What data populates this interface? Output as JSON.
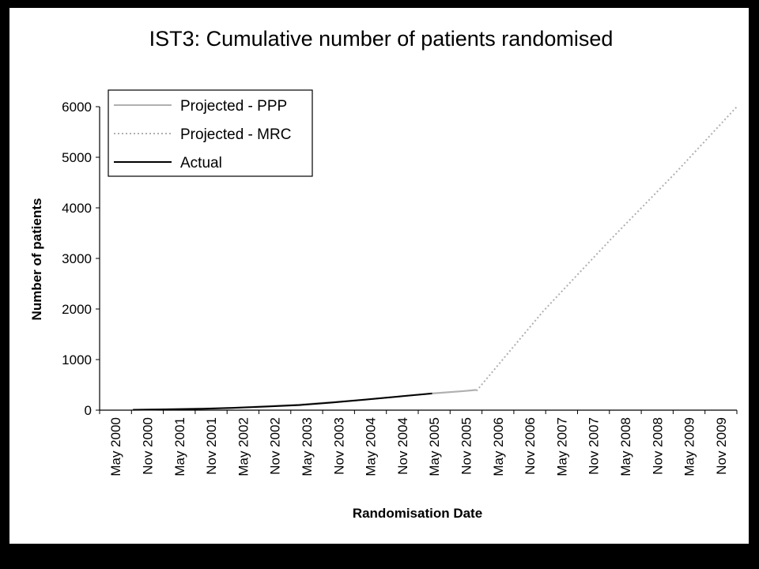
{
  "chart_data": {
    "type": "line",
    "title": "IST3: Cumulative number of patients randomised",
    "xlabel": "Randomisation Date",
    "ylabel": "Number of patients",
    "ylim": [
      0,
      6000
    ],
    "y_ticks": [
      0,
      1000,
      2000,
      3000,
      4000,
      5000,
      6000
    ],
    "x_ticks": [
      "May 2000",
      "Nov 2000",
      "May 2001",
      "Nov 2001",
      "May 2002",
      "Nov 2002",
      "May 2003",
      "Nov 2003",
      "May 2004",
      "Nov 2004",
      "May 2005",
      "Nov 2005",
      "May 2006",
      "Nov 2006",
      "May 2007",
      "Nov 2007",
      "May 2008",
      "Nov 2008",
      "May 2009",
      "Nov 2009"
    ],
    "xlim": [
      "2000-05",
      "2009-12"
    ],
    "grid": false,
    "legend_position": "top-left",
    "series": [
      {
        "name": "Projected - PPP",
        "color": "#b0b0b0",
        "style": "solid",
        "points": [
          [
            "2000-11",
            5
          ],
          [
            "2002-05",
            45
          ],
          [
            "2003-05",
            110
          ],
          [
            "2004-05",
            210
          ],
          [
            "2005-05",
            330
          ],
          [
            "2005-11",
            380
          ],
          [
            "2006-01",
            400
          ]
        ]
      },
      {
        "name": "Projected - MRC",
        "color": "#b0b0b0",
        "style": "dotted",
        "points": [
          [
            "2006-01",
            380
          ],
          [
            "2007-01",
            1950
          ],
          [
            "2008-01",
            3350
          ],
          [
            "2009-01",
            4700
          ],
          [
            "2009-12",
            6000
          ]
        ]
      },
      {
        "name": "Actual",
        "color": "#000000",
        "style": "solid",
        "points": [
          [
            "2000-11",
            8
          ],
          [
            "2001-05",
            15
          ],
          [
            "2001-11",
            25
          ],
          [
            "2002-05",
            45
          ],
          [
            "2002-11",
            70
          ],
          [
            "2003-05",
            100
          ],
          [
            "2003-11",
            150
          ],
          [
            "2004-05",
            210
          ],
          [
            "2004-11",
            270
          ],
          [
            "2005-05",
            330
          ]
        ]
      }
    ]
  }
}
